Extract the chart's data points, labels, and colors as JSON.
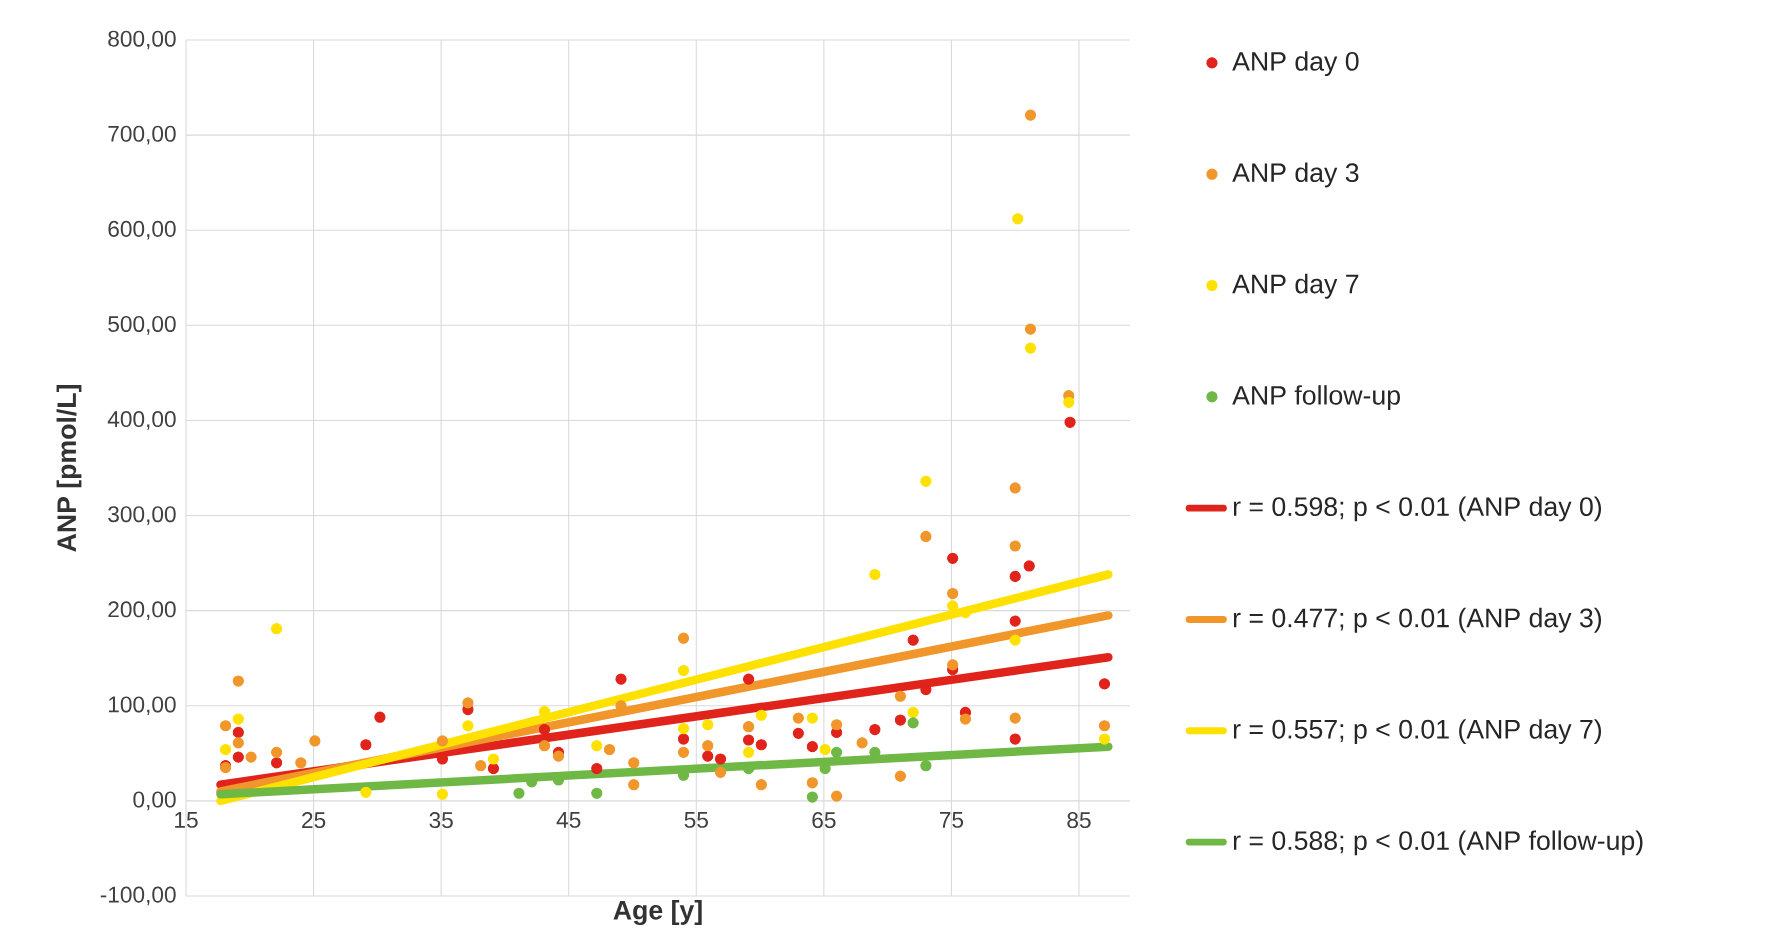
{
  "chart_data": {
    "type": "scatter",
    "xlabel": "Age [y]",
    "ylabel": "ANP [pmol/L]",
    "xlim": [
      15,
      89
    ],
    "xticks": [
      15,
      25,
      35,
      45,
      55,
      65,
      75,
      85
    ],
    "ylim": [
      -100,
      800
    ],
    "yticks": [
      {
        "value": -100,
        "label": "-100,00"
      },
      {
        "value": 0,
        "label": "0,00"
      },
      {
        "value": 100,
        "label": "100,00"
      },
      {
        "value": 200,
        "label": "200,00"
      },
      {
        "value": 300,
        "label": "300,00"
      },
      {
        "value": 400,
        "label": "400,00"
      },
      {
        "value": 500,
        "label": "500,00"
      },
      {
        "value": 600,
        "label": "600,00"
      },
      {
        "value": 700,
        "label": "700,00"
      },
      {
        "value": 800,
        "label": "800,00"
      }
    ],
    "grid": true,
    "legend": "right",
    "marker": "circle",
    "series": [
      {
        "name": "ANP day 0",
        "color": "#e0231b",
        "x": [
          19.1,
          19.1,
          18.1,
          22.1,
          29.1,
          30.2,
          35.1,
          37.1,
          39.1,
          43.1,
          44.2,
          47.2,
          49.1,
          54,
          55.9,
          56.9,
          59.1,
          59.1,
          60.1,
          63,
          64.1,
          66,
          69,
          72,
          71,
          73,
          75.1,
          75.1,
          76.1,
          80,
          81.1,
          80,
          80,
          87,
          84.3
        ],
        "values": [
          72,
          46,
          37,
          40,
          59,
          88,
          44,
          96,
          34,
          75,
          51,
          34,
          128,
          65,
          47,
          44,
          128,
          64,
          59,
          71,
          57,
          72,
          75,
          169,
          85,
          117,
          255,
          138,
          93,
          236,
          247,
          189,
          65,
          123,
          398
        ]
      },
      {
        "name": "ANP day 3",
        "color": "#f0962a",
        "x": [
          19.1,
          18.1,
          19.1,
          20.1,
          18.1,
          22.1,
          25.1,
          24,
          35.1,
          37.1,
          38.1,
          43.1,
          44.2,
          48.2,
          49.1,
          50.1,
          50.1,
          54,
          54,
          55.9,
          56.9,
          59.1,
          60.1,
          63,
          64.1,
          66,
          66,
          68,
          71,
          71,
          73,
          75.1,
          75.1,
          76.1,
          80,
          80,
          80,
          87,
          81.2,
          81.2,
          84.2
        ],
        "values": [
          126,
          79,
          61,
          46,
          35,
          51,
          63,
          40,
          63,
          103,
          37,
          58,
          47,
          54,
          100,
          40,
          17,
          171,
          51,
          58,
          30,
          78,
          17,
          87,
          19,
          80,
          5,
          61,
          110,
          26,
          278,
          218,
          143,
          86,
          268,
          329,
          87,
          79,
          721,
          496,
          426
        ]
      },
      {
        "name": "ANP day 7",
        "color": "#ffe100",
        "x": [
          22.1,
          19.1,
          18.1,
          29.1,
          35.1,
          37.1,
          39.1,
          43.1,
          47.2,
          54,
          54,
          55.9,
          59.1,
          60.1,
          64.1,
          65.1,
          69,
          72,
          73,
          75.1,
          76.1,
          80,
          87,
          80.2,
          81.2,
          84.2
        ],
        "values": [
          181,
          86,
          54,
          9,
          7,
          79,
          44,
          94,
          58,
          137,
          76,
          80,
          51,
          90,
          87,
          54,
          238,
          93,
          336,
          205,
          198,
          169,
          65,
          612,
          476,
          419
        ]
      },
      {
        "name": "ANP follow-up",
        "color": "#70b845",
        "x": [
          41.1,
          42.1,
          44.2,
          47.2,
          54,
          59.1,
          64.1,
          65.1,
          66,
          69,
          72,
          73
        ],
        "values": [
          8,
          20,
          22,
          8,
          27,
          34,
          4,
          34,
          51,
          51,
          82,
          37
        ]
      },
      {
        "name": "r = 0.598; p < 0.01 (ANP day 0)",
        "type": "line",
        "marker": "none",
        "color": "#e0231b",
        "x": [
          17.7,
          87.3
        ],
        "values": [
          17,
          151
        ]
      },
      {
        "name": "r = 0.477; p < 0.01 (ANP day 3)",
        "type": "line",
        "marker": "none",
        "color": "#f0962a",
        "x": [
          17.7,
          87.3
        ],
        "values": [
          10,
          195
        ]
      },
      {
        "name": "r = 0.557; p < 0.01 (ANP day 7)",
        "type": "line",
        "marker": "none",
        "color": "#ffe100",
        "x": [
          17.7,
          87.3
        ],
        "values": [
          0,
          238
        ]
      },
      {
        "name": "r = 0.588; p < 0.01 (ANP follow-up)",
        "type": "line",
        "marker": "none",
        "color": "#70b845",
        "x": [
          17.7,
          87.3
        ],
        "values": [
          7,
          57
        ]
      }
    ]
  }
}
